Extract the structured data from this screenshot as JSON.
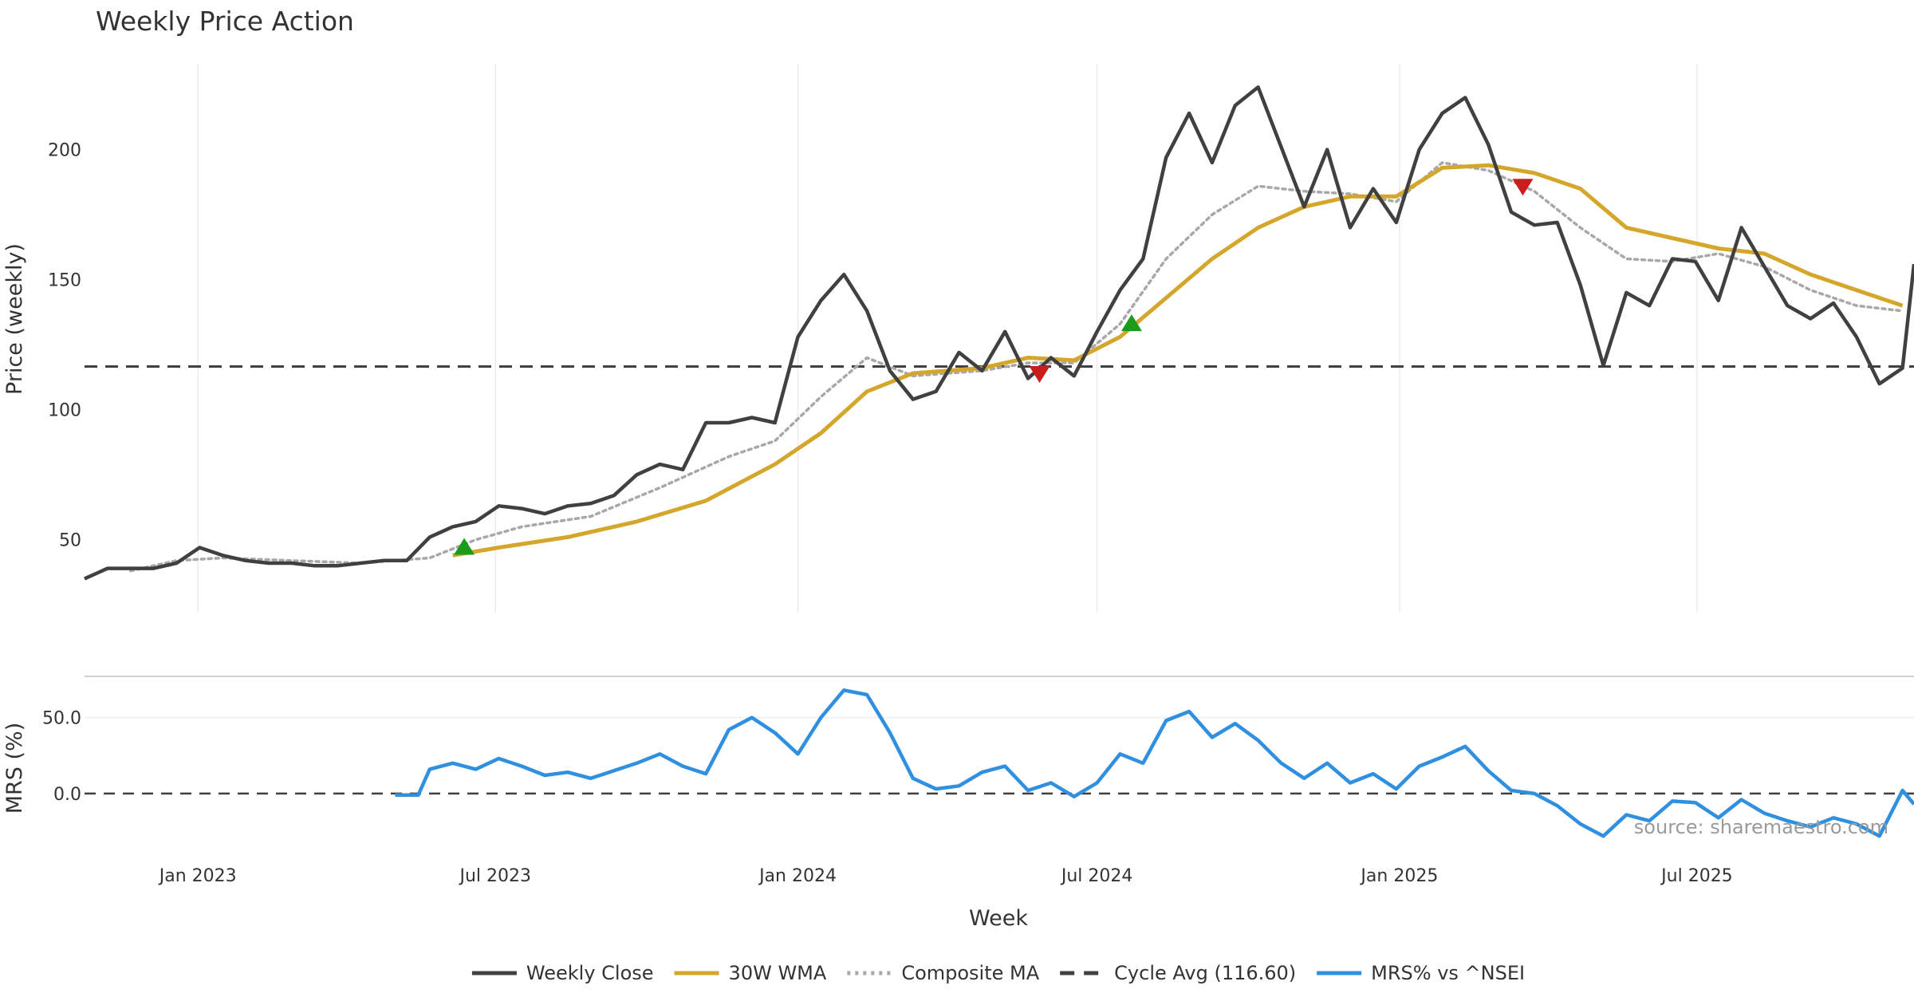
{
  "chart_data": {
    "type": "line",
    "title": "Weekly Price Action",
    "xlabel": "Week",
    "source": "source: sharemaestro.com",
    "date_ticks": [
      "Jan 2023",
      "Jul 2023",
      "Jan 2024",
      "Jul 2024",
      "Jan 2025",
      "Jul 2025"
    ],
    "x_range": [
      "2022-10-24",
      "2025-11-10"
    ],
    "price_panel": {
      "ylabel": "Price (weekly)",
      "ylim": [
        22,
        233
      ],
      "yticks": [
        50,
        100,
        150,
        200
      ],
      "x_grid": true,
      "y_grid": false,
      "weekly_close": [
        [
          "2022-10-24",
          35
        ],
        [
          "2022-11-07",
          39
        ],
        [
          "2022-11-21",
          39
        ],
        [
          "2022-12-05",
          39
        ],
        [
          "2022-12-19",
          41
        ],
        [
          "2023-01-02",
          47
        ],
        [
          "2023-01-16",
          44
        ],
        [
          "2023-01-30",
          42
        ],
        [
          "2023-02-13",
          41
        ],
        [
          "2023-02-27",
          41
        ],
        [
          "2023-03-13",
          40
        ],
        [
          "2023-03-27",
          40
        ],
        [
          "2023-04-10",
          41
        ],
        [
          "2023-04-24",
          42
        ],
        [
          "2023-05-08",
          42
        ],
        [
          "2023-05-22",
          51
        ],
        [
          "2023-06-05",
          55
        ],
        [
          "2023-06-19",
          57
        ],
        [
          "2023-07-03",
          63
        ],
        [
          "2023-07-17",
          62
        ],
        [
          "2023-07-31",
          60
        ],
        [
          "2023-08-14",
          63
        ],
        [
          "2023-08-28",
          64
        ],
        [
          "2023-09-11",
          67
        ],
        [
          "2023-09-25",
          75
        ],
        [
          "2023-10-09",
          79
        ],
        [
          "2023-10-23",
          77
        ],
        [
          "2023-11-06",
          95
        ],
        [
          "2023-11-20",
          95
        ],
        [
          "2023-12-04",
          97
        ],
        [
          "2023-12-18",
          95
        ],
        [
          "2024-01-01",
          128
        ],
        [
          "2024-01-15",
          142
        ],
        [
          "2024-01-29",
          152
        ],
        [
          "2024-02-12",
          138
        ],
        [
          "2024-02-26",
          115
        ],
        [
          "2024-03-11",
          104
        ],
        [
          "2024-03-25",
          107
        ],
        [
          "2024-04-08",
          122
        ],
        [
          "2024-04-22",
          115
        ],
        [
          "2024-05-06",
          130
        ],
        [
          "2024-05-20",
          112
        ],
        [
          "2024-06-03",
          120
        ],
        [
          "2024-06-17",
          113
        ],
        [
          "2024-07-01",
          130
        ],
        [
          "2024-07-15",
          146
        ],
        [
          "2024-07-29",
          158
        ],
        [
          "2024-08-12",
          197
        ],
        [
          "2024-08-26",
          214
        ],
        [
          "2024-09-09",
          195
        ],
        [
          "2024-09-23",
          217
        ],
        [
          "2024-10-07",
          224
        ],
        [
          "2024-10-21",
          201
        ],
        [
          "2024-11-04",
          178
        ],
        [
          "2024-11-18",
          200
        ],
        [
          "2024-12-02",
          170
        ],
        [
          "2024-12-16",
          185
        ],
        [
          "2024-12-30",
          172
        ],
        [
          "2025-01-13",
          200
        ],
        [
          "2025-01-27",
          214
        ],
        [
          "2025-02-10",
          220
        ],
        [
          "2025-02-24",
          202
        ],
        [
          "2025-03-10",
          176
        ],
        [
          "2025-03-24",
          171
        ],
        [
          "2025-04-07",
          172
        ],
        [
          "2025-04-21",
          148
        ],
        [
          "2025-05-05",
          117
        ],
        [
          "2025-05-19",
          145
        ],
        [
          "2025-06-02",
          140
        ],
        [
          "2025-06-16",
          158
        ],
        [
          "2025-06-30",
          157
        ],
        [
          "2025-07-14",
          142
        ],
        [
          "2025-07-28",
          170
        ],
        [
          "2025-08-11",
          155
        ],
        [
          "2025-08-25",
          140
        ],
        [
          "2025-09-08",
          135
        ],
        [
          "2025-09-22",
          141
        ],
        [
          "2025-10-06",
          128
        ],
        [
          "2025-10-20",
          110
        ],
        [
          "2025-11-03",
          116
        ],
        [
          "2025-11-10",
          156
        ]
      ],
      "wma_30w": [
        [
          "2023-06-05",
          44
        ],
        [
          "2023-07-03",
          47
        ],
        [
          "2023-08-14",
          51
        ],
        [
          "2023-09-25",
          57
        ],
        [
          "2023-11-06",
          65
        ],
        [
          "2023-12-18",
          79
        ],
        [
          "2024-01-15",
          91
        ],
        [
          "2024-02-12",
          107
        ],
        [
          "2024-03-11",
          114
        ],
        [
          "2024-04-22",
          116
        ],
        [
          "2024-05-20",
          120
        ],
        [
          "2024-06-17",
          119
        ],
        [
          "2024-07-15",
          128
        ],
        [
          "2024-08-12",
          143
        ],
        [
          "2024-09-09",
          158
        ],
        [
          "2024-10-07",
          170
        ],
        [
          "2024-11-04",
          178
        ],
        [
          "2024-12-02",
          182
        ],
        [
          "2024-12-30",
          182
        ],
        [
          "2025-01-27",
          193
        ],
        [
          "2025-02-24",
          194
        ],
        [
          "2025-03-24",
          191
        ],
        [
          "2025-04-21",
          185
        ],
        [
          "2025-05-19",
          170
        ],
        [
          "2025-06-16",
          166
        ],
        [
          "2025-07-14",
          162
        ],
        [
          "2025-08-11",
          160
        ],
        [
          "2025-09-08",
          152
        ],
        [
          "2025-10-06",
          146
        ],
        [
          "2025-11-03",
          140
        ]
      ],
      "composite_ma": [
        [
          "2022-11-21",
          38
        ],
        [
          "2022-12-19",
          42
        ],
        [
          "2023-01-16",
          43
        ],
        [
          "2023-02-27",
          42
        ],
        [
          "2023-04-10",
          41
        ],
        [
          "2023-05-22",
          43
        ],
        [
          "2023-06-19",
          50
        ],
        [
          "2023-07-17",
          55
        ],
        [
          "2023-08-28",
          59
        ],
        [
          "2023-10-09",
          70
        ],
        [
          "2023-11-20",
          82
        ],
        [
          "2023-12-18",
          88
        ],
        [
          "2024-01-15",
          105
        ],
        [
          "2024-02-12",
          120
        ],
        [
          "2024-03-11",
          113
        ],
        [
          "2024-04-22",
          115
        ],
        [
          "2024-05-20",
          118
        ],
        [
          "2024-06-17",
          118
        ],
        [
          "2024-07-15",
          133
        ],
        [
          "2024-08-12",
          158
        ],
        [
          "2024-09-09",
          175
        ],
        [
          "2024-10-07",
          186
        ],
        [
          "2024-11-04",
          184
        ],
        [
          "2024-12-02",
          183
        ],
        [
          "2024-12-30",
          180
        ],
        [
          "2025-01-27",
          195
        ],
        [
          "2025-02-24",
          192
        ],
        [
          "2025-03-24",
          184
        ],
        [
          "2025-04-21",
          170
        ],
        [
          "2025-05-19",
          158
        ],
        [
          "2025-06-16",
          157
        ],
        [
          "2025-07-14",
          160
        ],
        [
          "2025-08-11",
          155
        ],
        [
          "2025-09-08",
          146
        ],
        [
          "2025-10-06",
          140
        ],
        [
          "2025-11-03",
          138
        ]
      ],
      "cycle_avg": 116.6,
      "buy_signals": [
        [
          "2023-06-12",
          47
        ],
        [
          "2024-07-22",
          133
        ]
      ],
      "sell_signals": [
        [
          "2024-05-27",
          114
        ],
        [
          "2025-03-17",
          186
        ]
      ]
    },
    "mrs_panel": {
      "ylabel": "MRS (%)",
      "ylim": [
        -30,
        75
      ],
      "yticks": [
        0.0,
        50.0
      ],
      "ytick_labels": [
        "0.0",
        "50.0"
      ],
      "zero_line": 0,
      "mrs_vs_index": [
        [
          "2023-05-01",
          -1
        ],
        [
          "2023-05-15",
          -1
        ],
        [
          "2023-05-22",
          16
        ],
        [
          "2023-06-05",
          20
        ],
        [
          "2023-06-19",
          16
        ],
        [
          "2023-07-03",
          23
        ],
        [
          "2023-07-17",
          18
        ],
        [
          "2023-07-31",
          12
        ],
        [
          "2023-08-14",
          14
        ],
        [
          "2023-08-28",
          10
        ],
        [
          "2023-09-11",
          15
        ],
        [
          "2023-09-25",
          20
        ],
        [
          "2023-10-09",
          26
        ],
        [
          "2023-10-23",
          18
        ],
        [
          "2023-11-06",
          13
        ],
        [
          "2023-11-20",
          42
        ],
        [
          "2023-12-04",
          50
        ],
        [
          "2023-12-18",
          40
        ],
        [
          "2024-01-01",
          26
        ],
        [
          "2024-01-15",
          50
        ],
        [
          "2024-01-29",
          68
        ],
        [
          "2024-02-12",
          65
        ],
        [
          "2024-02-26",
          40
        ],
        [
          "2024-03-11",
          10
        ],
        [
          "2024-03-25",
          3
        ],
        [
          "2024-04-08",
          5
        ],
        [
          "2024-04-22",
          14
        ],
        [
          "2024-05-06",
          18
        ],
        [
          "2024-05-20",
          2
        ],
        [
          "2024-06-03",
          7
        ],
        [
          "2024-06-17",
          -2
        ],
        [
          "2024-07-01",
          7
        ],
        [
          "2024-07-15",
          26
        ],
        [
          "2024-07-29",
          20
        ],
        [
          "2024-08-12",
          48
        ],
        [
          "2024-08-26",
          54
        ],
        [
          "2024-09-09",
          37
        ],
        [
          "2024-09-23",
          46
        ],
        [
          "2024-10-07",
          35
        ],
        [
          "2024-10-21",
          20
        ],
        [
          "2024-11-04",
          10
        ],
        [
          "2024-11-18",
          20
        ],
        [
          "2024-12-02",
          7
        ],
        [
          "2024-12-16",
          13
        ],
        [
          "2024-12-30",
          3
        ],
        [
          "2025-01-13",
          18
        ],
        [
          "2025-01-27",
          24
        ],
        [
          "2025-02-10",
          31
        ],
        [
          "2025-02-24",
          15
        ],
        [
          "2025-03-10",
          2
        ],
        [
          "2025-03-24",
          0
        ],
        [
          "2025-04-07",
          -8
        ],
        [
          "2025-04-21",
          -20
        ],
        [
          "2025-05-05",
          -28
        ],
        [
          "2025-05-19",
          -14
        ],
        [
          "2025-06-02",
          -18
        ],
        [
          "2025-06-16",
          -5
        ],
        [
          "2025-06-30",
          -6
        ],
        [
          "2025-07-14",
          -16
        ],
        [
          "2025-07-28",
          -4
        ],
        [
          "2025-08-11",
          -13
        ],
        [
          "2025-08-25",
          -18
        ],
        [
          "2025-09-08",
          -22
        ],
        [
          "2025-09-22",
          -16
        ],
        [
          "2025-10-06",
          -20
        ],
        [
          "2025-10-20",
          -28
        ],
        [
          "2025-11-03",
          2
        ],
        [
          "2025-11-10",
          -7
        ]
      ]
    },
    "legend": {
      "placement": "bottom",
      "items": [
        {
          "label": "Weekly Close",
          "color": "#404040",
          "style": "solid"
        },
        {
          "label": "30W WMA",
          "color": "#d4a72c",
          "style": "solid"
        },
        {
          "label": "Composite MA",
          "color": "#a8a8a8",
          "style": "dotted"
        },
        {
          "label": "Cycle Avg (116.60)",
          "color": "#404040",
          "style": "dashed"
        },
        {
          "label": "MRS% vs ^NSEI",
          "color": "#2f8fe0",
          "style": "solid"
        }
      ]
    },
    "colors": {
      "close": "#404040",
      "wma": "#d4a72c",
      "composite": "#a8a8a8",
      "cycle": "#404040",
      "mrs": "#2f8fe0",
      "buy": "#1a9c1a",
      "sell": "#cc1d1d"
    }
  }
}
